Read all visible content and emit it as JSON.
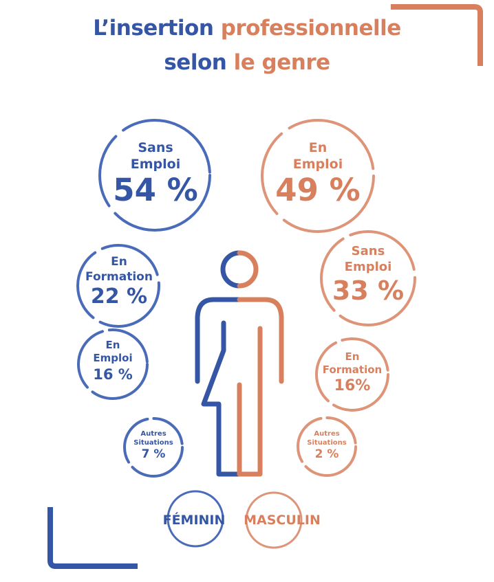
{
  "title": {
    "line1_part1": "L’insertion ",
    "line1_part2": "professionnelle",
    "line2_part1": "selon ",
    "line2_part2": "le genre"
  },
  "colors": {
    "feminin": "#3456a4",
    "feminin_ring": "#4a6bb8",
    "masculin": "#d8805e",
    "masculin_ring": "#dd9478"
  },
  "feminin": [
    {
      "label_line1": "Sans",
      "label_line2": "Emploi",
      "value": "54 %"
    },
    {
      "label_line1": "En",
      "label_line2": "Formation",
      "value": "22 %"
    },
    {
      "label_line1": "En",
      "label_line2": "Emploi",
      "value": "16 %"
    },
    {
      "label_line1": "Autres",
      "label_line2": "Situations",
      "value": "7 %"
    }
  ],
  "masculin": [
    {
      "label_line1": "En",
      "label_line2": "Emploi",
      "value": "49 %"
    },
    {
      "label_line1": "Sans",
      "label_line2": "Emploi",
      "value": "33 %"
    },
    {
      "label_line1": "En",
      "label_line2": "Formation",
      "value": "16%"
    },
    {
      "label_line1": "Autres",
      "label_line2": "Situations",
      "value": "2 %"
    }
  ],
  "legend": {
    "feminin": "FÉMININ",
    "masculin": "MASCULIN"
  },
  "icons": [
    "person-gender-split-icon",
    "corner-bracket-icon"
  ]
}
